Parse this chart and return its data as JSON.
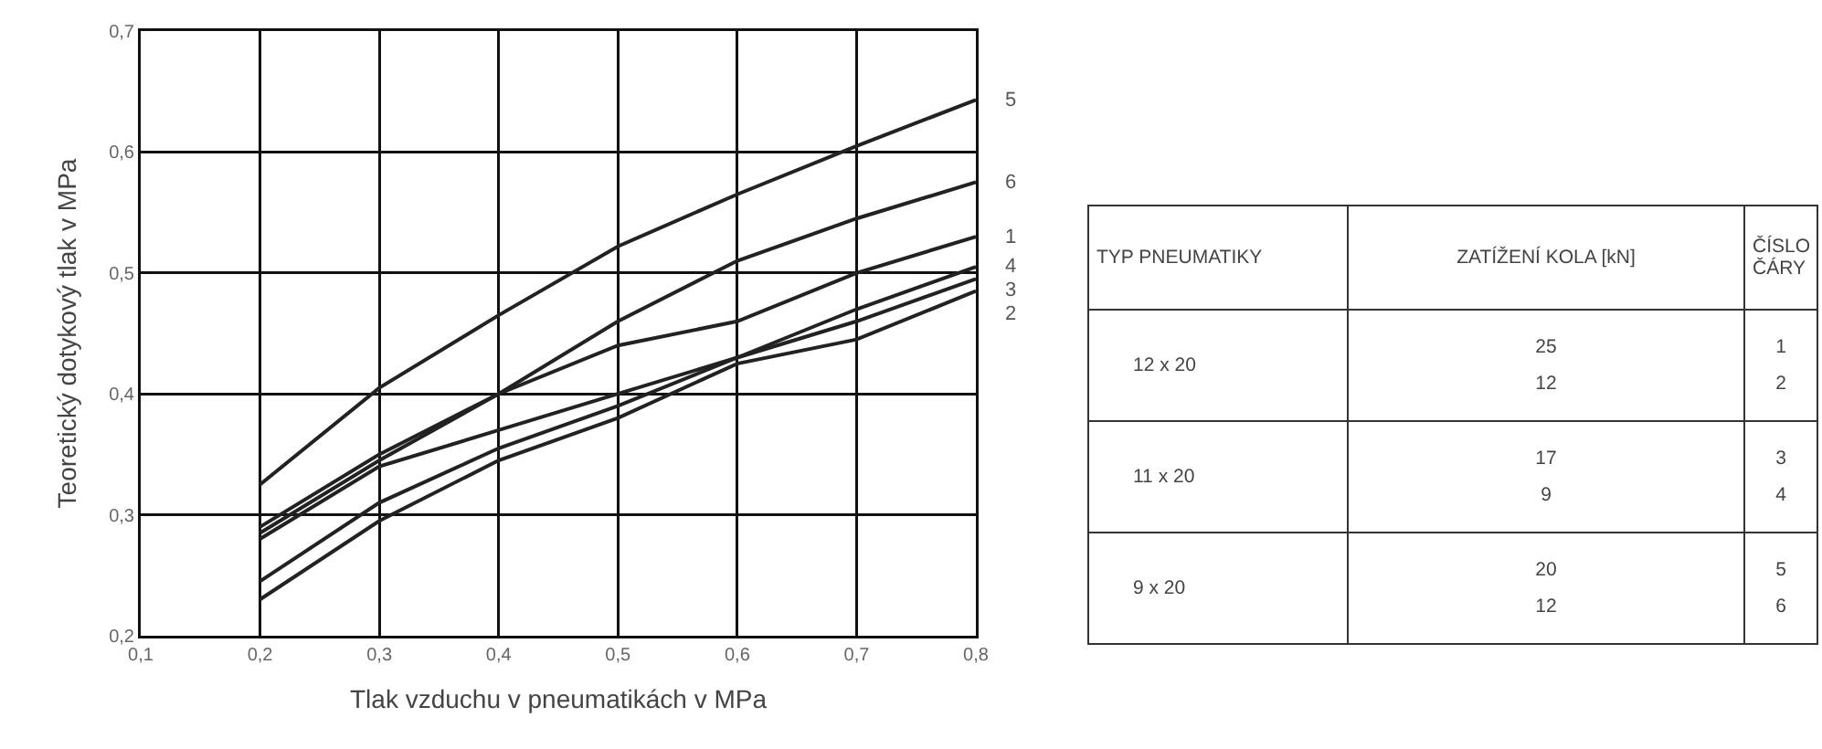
{
  "chart_data": [
    {
      "type": "line",
      "xlabel": "Tlak vzduchu v pneumatikách v MPa",
      "ylabel": "Teoretický dotykový tlak v MPa",
      "x": [
        0.2,
        0.3,
        0.4,
        0.5,
        0.6,
        0.7,
        0.8
      ],
      "series": [
        {
          "name": "5",
          "color": "#222222",
          "values": [
            0.325,
            0.405,
            0.465,
            0.522,
            0.565,
            0.605,
            0.643
          ]
        },
        {
          "name": "6",
          "color": "#222222",
          "values": [
            0.29,
            0.35,
            0.4,
            0.46,
            0.51,
            0.545,
            0.575
          ]
        },
        {
          "name": "1",
          "color": "#222222",
          "values": [
            0.285,
            0.345,
            0.4,
            0.44,
            0.46,
            0.5,
            0.53
          ]
        },
        {
          "name": "4",
          "color": "#222222",
          "values": [
            0.28,
            0.34,
            0.37,
            0.4,
            0.43,
            0.47,
            0.505
          ]
        },
        {
          "name": "3",
          "color": "#222222",
          "values": [
            0.245,
            0.31,
            0.355,
            0.39,
            0.43,
            0.46,
            0.495
          ]
        },
        {
          "name": "2",
          "color": "#222222",
          "values": [
            0.23,
            0.295,
            0.345,
            0.38,
            0.425,
            0.445,
            0.485
          ]
        }
      ],
      "xlim": [
        0.1,
        0.8
      ],
      "xticks": [
        {
          "value": 0.1,
          "label": "0,1"
        },
        {
          "value": 0.2,
          "label": "0,2"
        },
        {
          "value": 0.3,
          "label": "0,3"
        },
        {
          "value": 0.4,
          "label": "0,4"
        },
        {
          "value": 0.5,
          "label": "0,5"
        },
        {
          "value": 0.6,
          "label": "0,6"
        },
        {
          "value": 0.7,
          "label": "0,7"
        },
        {
          "value": 0.8,
          "label": "0,8"
        }
      ],
      "ylim": [
        0.2,
        0.7
      ],
      "yticks": [
        {
          "value": 0.2,
          "label": "0,2"
        },
        {
          "value": 0.3,
          "label": "0,3"
        },
        {
          "value": 0.4,
          "label": "0,4"
        },
        {
          "value": 0.5,
          "label": "0,5"
        },
        {
          "value": 0.6,
          "label": "0,6"
        },
        {
          "value": 0.7,
          "label": "0,7"
        }
      ],
      "grid": true,
      "legend": false,
      "marker": "none",
      "line_style": "solid"
    },
    {
      "type": "other",
      "categories": [
        "TYP PNEUMATIKY",
        "ZATÍŽENÍ KOLA [kN]",
        "ČÍSLO ČÁRY"
      ],
      "cell_labels": [
        [
          "12 x 20",
          "25\n12",
          "1\n2"
        ],
        [
          "11 x 20",
          "17\n9",
          "3\n4"
        ],
        [
          "9 x 20",
          "20\n12",
          "5\n6"
        ]
      ]
    }
  ]
}
